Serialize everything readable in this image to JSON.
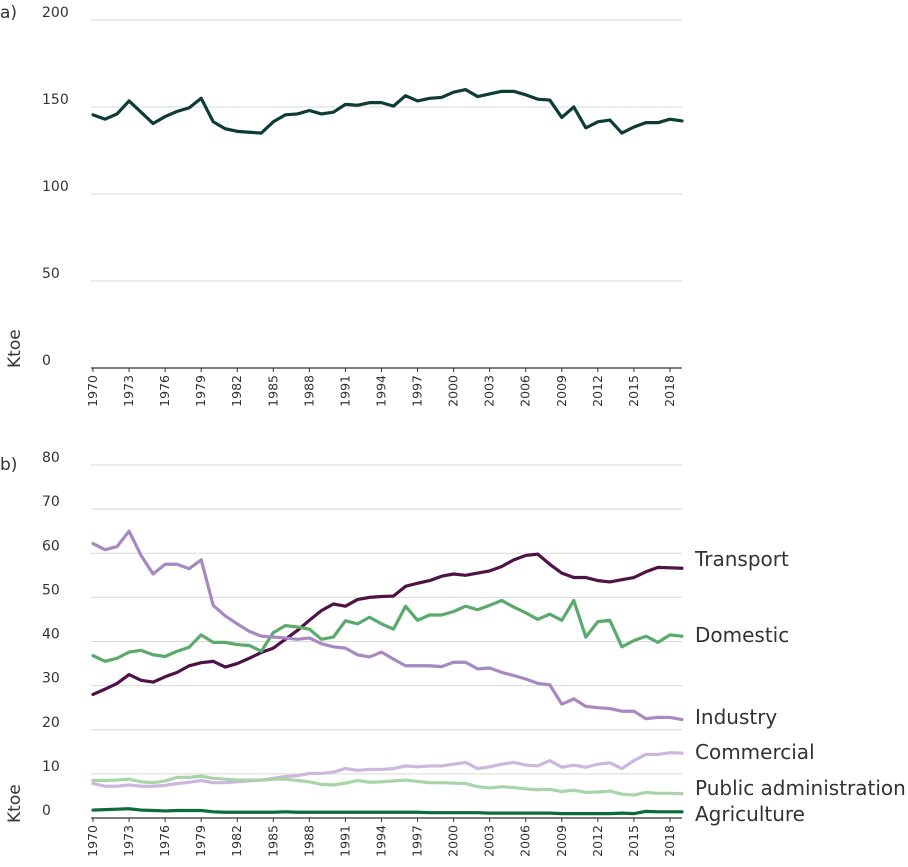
{
  "chart_data": [
    {
      "type": "line",
      "panel": "a)",
      "ylabel": "Ktoe",
      "ylim": [
        0,
        200
      ],
      "yticks": [
        "0",
        "50",
        "100",
        "150",
        "200"
      ],
      "grid": true,
      "x": [
        1970,
        1971,
        1972,
        1973,
        1974,
        1975,
        1976,
        1977,
        1978,
        1979,
        1980,
        1981,
        1982,
        1983,
        1984,
        1985,
        1986,
        1987,
        1988,
        1989,
        1990,
        1991,
        1992,
        1993,
        1994,
        1995,
        1996,
        1997,
        1998,
        1999,
        2000,
        2001,
        2002,
        2003,
        2004,
        2005,
        2006,
        2007,
        2008,
        2009,
        2010,
        2011,
        2012,
        2013,
        2014,
        2015,
        2016,
        2017,
        2018,
        2019
      ],
      "x_tick_labels": [
        "1970",
        "1973",
        "1976",
        "1979",
        "1982",
        "1985",
        "1988",
        "1991",
        "1994",
        "1997",
        "2000",
        "2003",
        "2006",
        "2009",
        "2012",
        "2015",
        "2018"
      ],
      "series": [
        {
          "color": "#0d3b36",
          "values": [
            145.5,
            143,
            146,
            153.5,
            147,
            140.5,
            144.5,
            147.5,
            149.5,
            155,
            141.5,
            137.5,
            136,
            135.5,
            135,
            141.5,
            145.5,
            146,
            148,
            146,
            147,
            151.5,
            151,
            152.5,
            152.5,
            150.5,
            156.5,
            153.5,
            155,
            155.5,
            158.5,
            160,
            156,
            157.5,
            159,
            159,
            157,
            154.5,
            154,
            144,
            150,
            138,
            141.5,
            142.5,
            135,
            138.5,
            141,
            141,
            143,
            142
          ]
        }
      ]
    },
    {
      "type": "line",
      "panel": "b)",
      "ylabel": "Ktoe",
      "ylim": [
        0,
        80
      ],
      "yticks": [
        "0",
        "10",
        "20",
        "30",
        "40",
        "50",
        "60",
        "70",
        "80"
      ],
      "grid": true,
      "x": [
        1970,
        1971,
        1972,
        1973,
        1974,
        1975,
        1976,
        1977,
        1978,
        1979,
        1980,
        1981,
        1982,
        1983,
        1984,
        1985,
        1986,
        1987,
        1988,
        1989,
        1990,
        1991,
        1992,
        1993,
        1994,
        1995,
        1996,
        1997,
        1998,
        1999,
        2000,
        2001,
        2002,
        2003,
        2004,
        2005,
        2006,
        2007,
        2008,
        2009,
        2010,
        2011,
        2012,
        2013,
        2014,
        2015,
        2016,
        2017,
        2018,
        2019
      ],
      "x_tick_labels": [
        "1970",
        "1973",
        "1976",
        "1979",
        "1982",
        "1985",
        "1988",
        "1991",
        "1994",
        "1997",
        "2000",
        "2003",
        "2006",
        "2009",
        "2012",
        "2015",
        "2018"
      ],
      "series": [
        {
          "name": "Transport",
          "color": "#4f1247",
          "values": [
            28,
            29.2,
            30.5,
            32.5,
            31.2,
            30.8,
            32,
            33,
            34.5,
            35.2,
            35.5,
            34.2,
            35,
            36.2,
            37.5,
            38.5,
            40.5,
            42.5,
            44.8,
            47,
            48.5,
            48,
            49.5,
            50,
            50.2,
            50.3,
            52.5,
            53.2,
            53.8,
            54.8,
            55.3,
            55,
            55.5,
            56,
            57,
            58.5,
            59.5,
            59.8,
            57.5,
            55.5,
            54.5,
            54.5,
            53.8,
            53.5,
            54,
            54.5,
            55.8,
            56.8,
            56.7,
            56.6
          ]
        },
        {
          "name": "Domestic",
          "color": "#5aab6b",
          "values": [
            36.8,
            35.5,
            36.2,
            37.6,
            38,
            37,
            36.6,
            37.8,
            38.7,
            41.5,
            39.8,
            39.8,
            39.3,
            39.1,
            37.8,
            42,
            43.6,
            43.3,
            42.8,
            40.5,
            41,
            44.7,
            44,
            45.5,
            44,
            42.8,
            48,
            44.8,
            46,
            46,
            46.8,
            48,
            47.2,
            48.2,
            49.3,
            47.8,
            46.5,
            45,
            46.2,
            44.8,
            49.3,
            41,
            44.5,
            44.8,
            38.8,
            40.2,
            41.2,
            39.8,
            41.5,
            41.2
          ]
        },
        {
          "name": "Industry",
          "color": "#a888c0",
          "values": [
            62.2,
            60.8,
            61.5,
            65,
            59.5,
            55.3,
            57.5,
            57.5,
            56.5,
            58.5,
            48.2,
            45.8,
            44,
            42.3,
            41.2,
            41,
            40.8,
            40.5,
            40.8,
            39.5,
            38.8,
            38.5,
            37,
            36.5,
            37.6,
            36,
            34.5,
            34.5,
            34.5,
            34.3,
            35.3,
            35.3,
            33.8,
            34,
            33,
            32.3,
            31.5,
            30.5,
            30.2,
            25.8,
            27,
            25.3,
            25,
            24.8,
            24.2,
            24.2,
            22.5,
            22.8,
            22.8,
            22.3
          ]
        },
        {
          "name": "Commercial",
          "color": "#cdb6de",
          "values": [
            7.8,
            7.2,
            7.2,
            7.5,
            7.2,
            7.2,
            7.4,
            7.8,
            8.1,
            8.5,
            8,
            8,
            8.2,
            8.4,
            8.6,
            9,
            9.4,
            9.6,
            10.1,
            10.1,
            10.4,
            11.2,
            10.8,
            11,
            11,
            11.2,
            11.8,
            11.6,
            11.8,
            11.8,
            12.2,
            12.6,
            11.2,
            11.6,
            12.2,
            12.6,
            12,
            11.8,
            13,
            11.5,
            12,
            11.5,
            12.2,
            12.5,
            11.2,
            13,
            14.4,
            14.4,
            14.8,
            14.7
          ]
        },
        {
          "name": "Public administration",
          "color": "#a8d4a7",
          "values": [
            8.5,
            8.5,
            8.6,
            8.8,
            8.2,
            8,
            8.4,
            9.2,
            9.2,
            9.5,
            9,
            8.8,
            8.6,
            8.6,
            8.6,
            8.8,
            8.8,
            8.5,
            8.2,
            7.6,
            7.5,
            7.9,
            8.5,
            8.1,
            8.2,
            8.4,
            8.6,
            8.3,
            8,
            8,
            7.9,
            7.8,
            7.1,
            6.8,
            7.1,
            6.9,
            6.6,
            6.4,
            6.5,
            6,
            6.3,
            5.8,
            5.9,
            6.1,
            5.4,
            5.2,
            5.8,
            5.6,
            5.6,
            5.5
          ]
        },
        {
          "name": "Agriculture",
          "color": "#0c6b3a",
          "values": [
            1.8,
            1.9,
            2,
            2.1,
            1.8,
            1.7,
            1.6,
            1.7,
            1.7,
            1.7,
            1.4,
            1.3,
            1.3,
            1.3,
            1.3,
            1.3,
            1.4,
            1.3,
            1.3,
            1.3,
            1.3,
            1.3,
            1.3,
            1.3,
            1.3,
            1.3,
            1.3,
            1.3,
            1.2,
            1.2,
            1.2,
            1.2,
            1.2,
            1.1,
            1.1,
            1.1,
            1.1,
            1.1,
            1.1,
            1,
            1,
            1,
            1,
            1,
            1.1,
            1,
            1.5,
            1.4,
            1.4,
            1.4
          ]
        }
      ]
    }
  ]
}
